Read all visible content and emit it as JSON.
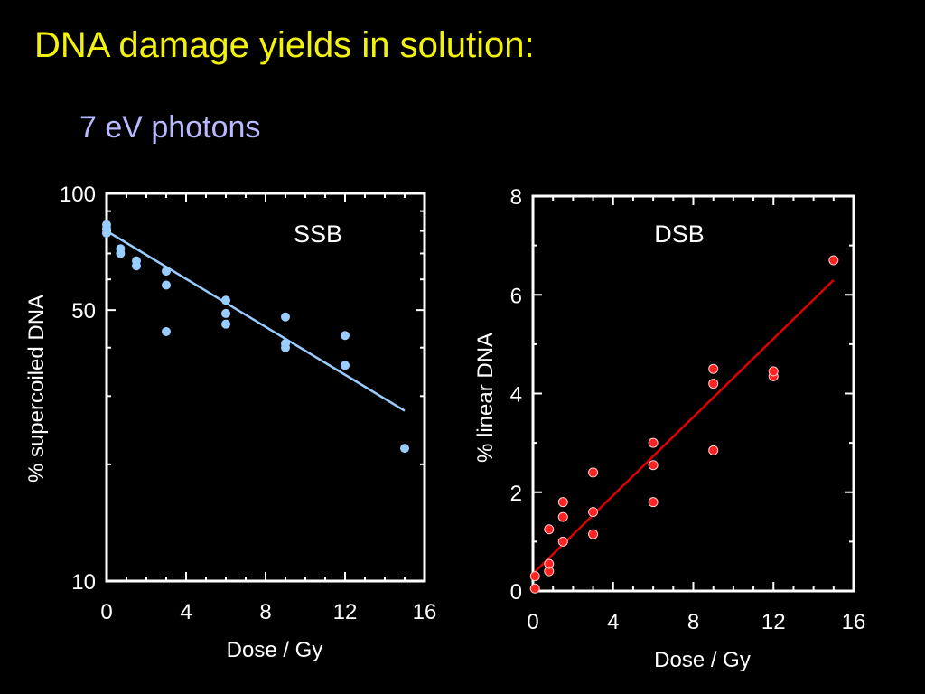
{
  "title": "DNA damage yields in solution:",
  "subtitle": "7 eV photons",
  "colors": {
    "background": "#000000",
    "title": "#f2f20a",
    "subtitle": "#b9b9ff",
    "axes": "#ffffff"
  },
  "chart_data": [
    {
      "type": "scatter",
      "label": "SSB",
      "xlabel": "Dose / Gy",
      "ylabel": "% supercoiled DNA",
      "xlim": [
        0,
        16
      ],
      "ylim": [
        10,
        100
      ],
      "yscale": "log",
      "xticks": [
        "0",
        "4",
        "8",
        "12",
        "16"
      ],
      "yticks": [
        "10",
        "50",
        "100"
      ],
      "point_color": "#99ccff",
      "fit_color": "#99ccff",
      "points": [
        [
          0,
          83
        ],
        [
          0,
          81
        ],
        [
          0,
          79
        ],
        [
          0.7,
          72
        ],
        [
          0.7,
          70
        ],
        [
          1.5,
          67
        ],
        [
          1.5,
          65
        ],
        [
          3,
          63
        ],
        [
          3,
          58
        ],
        [
          3,
          44
        ],
        [
          6,
          53
        ],
        [
          6,
          49
        ],
        [
          6,
          46
        ],
        [
          9,
          48
        ],
        [
          9,
          41
        ],
        [
          9,
          40
        ],
        [
          12,
          43
        ],
        [
          12,
          36
        ],
        [
          15,
          22
        ]
      ],
      "fit": [
        [
          0,
          80
        ],
        [
          15,
          27.5
        ]
      ]
    },
    {
      "type": "scatter",
      "label": "DSB",
      "xlabel": "Dose / Gy",
      "ylabel": "% linear DNA",
      "xlim": [
        0,
        16
      ],
      "ylim": [
        0,
        8
      ],
      "yscale": "linear",
      "xticks": [
        "0",
        "4",
        "8",
        "12",
        "16"
      ],
      "yticks": [
        "0",
        "2",
        "4",
        "6",
        "8"
      ],
      "point_color": "#ff2222",
      "fit_color": "#dd0000",
      "points": [
        [
          0.1,
          0.05
        ],
        [
          0.1,
          0.3
        ],
        [
          0.8,
          0.4
        ],
        [
          0.8,
          0.55
        ],
        [
          0.8,
          1.25
        ],
        [
          1.5,
          1.0
        ],
        [
          1.5,
          1.5
        ],
        [
          1.5,
          1.8
        ],
        [
          3,
          1.15
        ],
        [
          3,
          1.6
        ],
        [
          3,
          2.4
        ],
        [
          6,
          1.8
        ],
        [
          6,
          2.55
        ],
        [
          6,
          3.0
        ],
        [
          9,
          2.85
        ],
        [
          9,
          4.2
        ],
        [
          9,
          4.5
        ],
        [
          12,
          4.35
        ],
        [
          12,
          4.45
        ],
        [
          15,
          6.7
        ]
      ],
      "fit": [
        [
          0,
          0.35
        ],
        [
          15,
          6.3
        ]
      ]
    }
  ]
}
